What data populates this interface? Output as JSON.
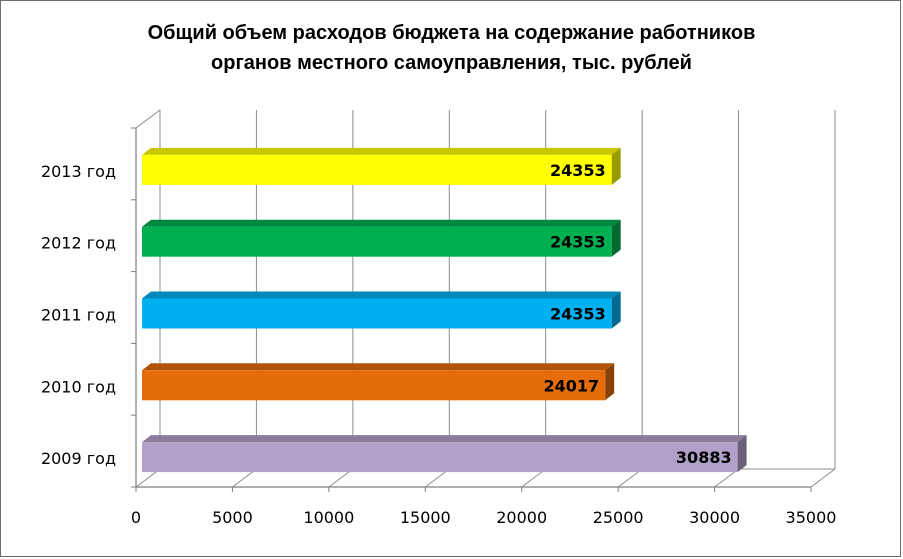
{
  "chart_data": {
    "type": "bar",
    "orientation": "horizontal",
    "title": [
      "Общий объем расходов бюджета на содержание работников",
      "органов местного самоуправления, тыс. рублей"
    ],
    "categories": [
      "2009 год",
      "2010 год",
      "2011 год",
      "2012 год",
      "2013 год"
    ],
    "values": [
      30883,
      24017,
      24353,
      24353,
      24353
    ],
    "colors": [
      "#b1a0c7",
      "#e46c0a",
      "#00b0f0",
      "#00b050",
      "#ffff00"
    ],
    "xticks": [
      "0",
      "5000",
      "10000",
      "15000",
      "20000",
      "25000",
      "30000",
      "35000"
    ],
    "xlim": [
      0,
      35000
    ],
    "grid": true,
    "legend": "none"
  }
}
